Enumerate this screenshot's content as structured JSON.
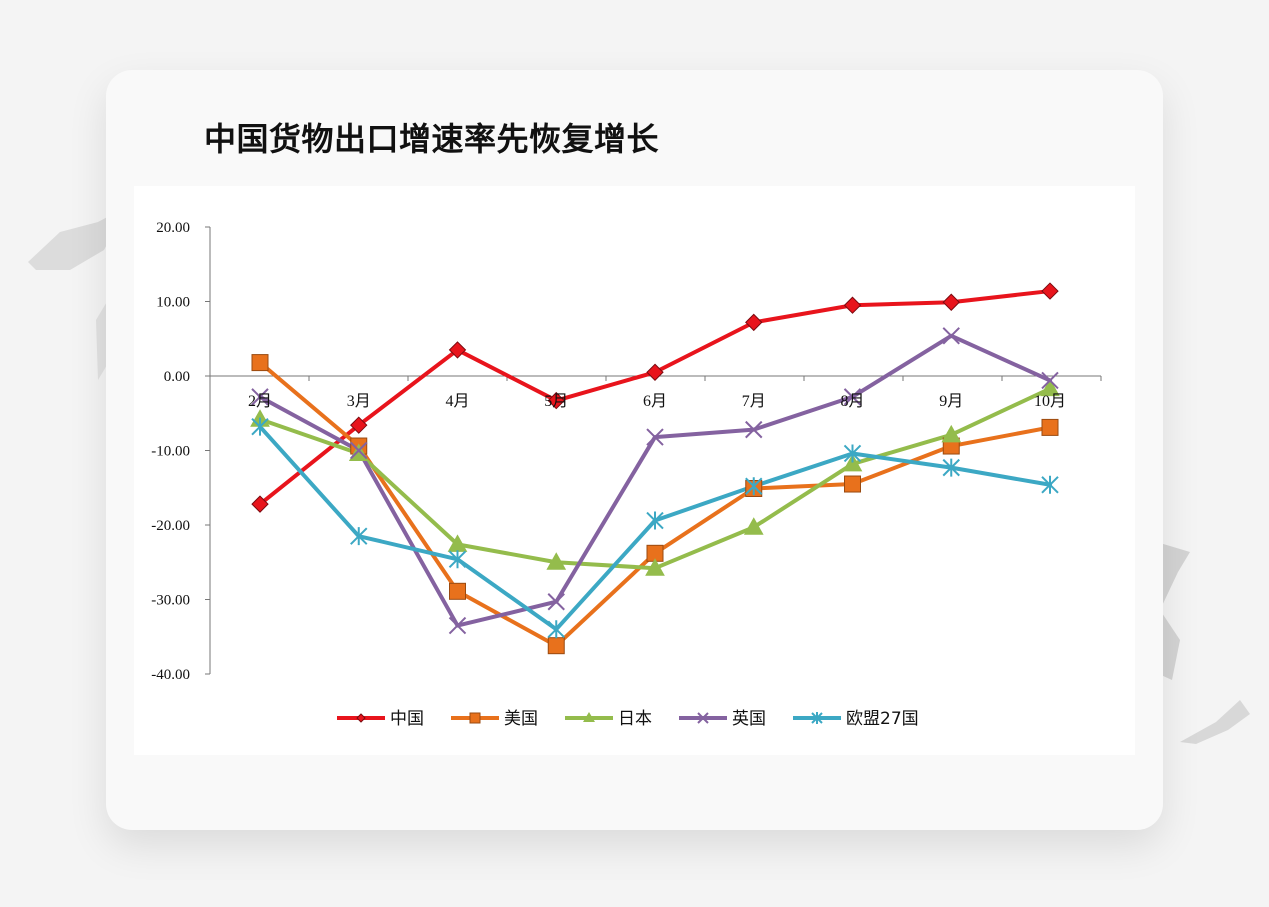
{
  "page": {
    "title": "中国货物出口增速率先恢复增长"
  },
  "chart_data": {
    "type": "line",
    "title": "",
    "xlabel": "",
    "ylabel": "",
    "categories": [
      "2月",
      "3月",
      "4月",
      "5月",
      "6月",
      "7月",
      "8月",
      "9月",
      "10月"
    ],
    "ylim": [
      -40,
      20
    ],
    "yticks": [
      20,
      10,
      0,
      -10,
      -20,
      -30,
      -40
    ],
    "ytick_labels": [
      "20.00",
      "10.00",
      "0.00",
      "-10.00",
      "-20.00",
      "-30.00",
      "-40.00"
    ],
    "grid": false,
    "legend": "bottom",
    "series": [
      {
        "name": "中国",
        "color": "#e8141c",
        "marker": "diamond",
        "values": [
          -17.2,
          -6.6,
          3.5,
          -3.3,
          0.5,
          7.2,
          9.5,
          9.9,
          11.4
        ]
      },
      {
        "name": "美国",
        "color": "#e8711c",
        "marker": "square",
        "values": [
          1.8,
          -9.4,
          -28.9,
          -36.2,
          -23.8,
          -15.1,
          -14.5,
          -9.4,
          -6.9
        ]
      },
      {
        "name": "日本",
        "color": "#94bc4c",
        "marker": "triangle",
        "values": [
          -5.8,
          -10.4,
          -22.6,
          -25.0,
          -25.8,
          -20.3,
          -11.8,
          -7.9,
          -1.7
        ]
      },
      {
        "name": "英国",
        "color": "#8462a0",
        "marker": "x",
        "values": [
          -2.8,
          -10.0,
          -33.5,
          -30.3,
          -8.2,
          -7.2,
          -2.8,
          5.4,
          -0.6
        ]
      },
      {
        "name": "欧盟27国",
        "color": "#3ca8c4",
        "marker": "star",
        "values": [
          -6.8,
          -21.5,
          -24.6,
          -34.0,
          -19.4,
          -14.8,
          -10.4,
          -12.3,
          -14.6
        ]
      }
    ]
  }
}
